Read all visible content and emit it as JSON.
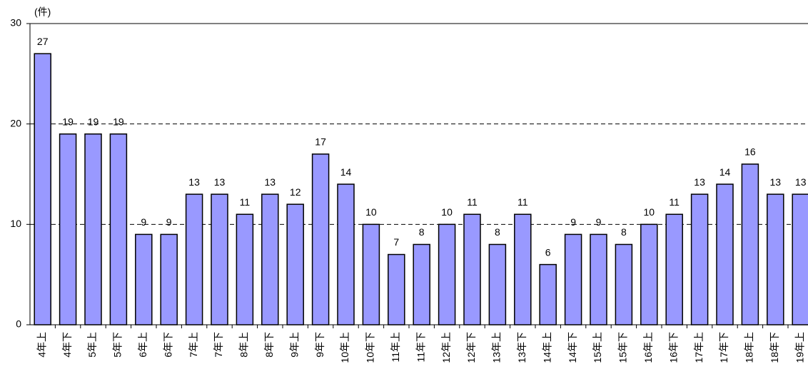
{
  "chart_data": {
    "type": "bar",
    "y_label": "(件)",
    "categories": [
      "4年上",
      "4年下",
      "5年上",
      "5年下",
      "6年上",
      "6年下",
      "7年上",
      "7年下",
      "8年上",
      "8年下",
      "9年上",
      "9年下",
      "10年上",
      "10年下",
      "11年上",
      "11年下",
      "12年上",
      "12年下",
      "13年上",
      "13年下",
      "14年上",
      "14年下",
      "15年上",
      "15年下",
      "16年上",
      "16年下",
      "17年上",
      "17年下",
      "18年上",
      "18年下",
      "19年上"
    ],
    "values": [
      27,
      19,
      19,
      19,
      9,
      9,
      13,
      13,
      11,
      13,
      12,
      17,
      14,
      10,
      7,
      8,
      10,
      11,
      8,
      11,
      6,
      9,
      9,
      8,
      10,
      11,
      13,
      14,
      16,
      13,
      13
    ],
    "color": "#9999ff",
    "ylim": [
      0,
      30
    ],
    "yticks": [
      0,
      10,
      20,
      30
    ],
    "grid": true
  }
}
